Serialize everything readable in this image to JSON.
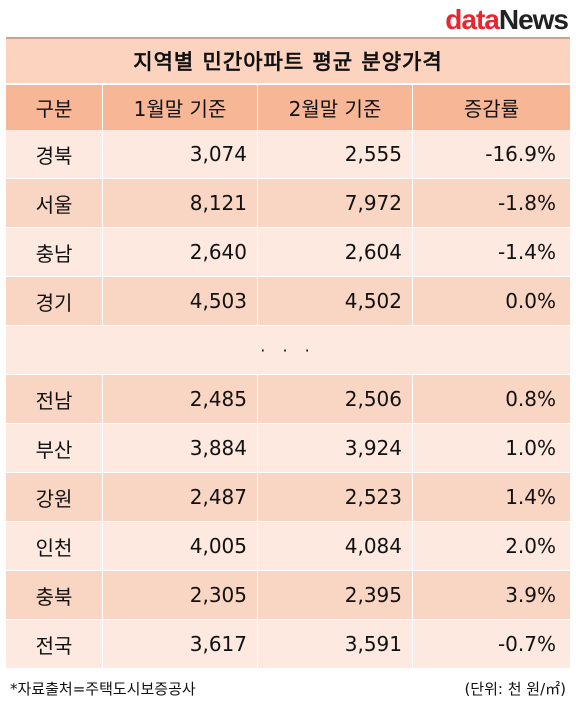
{
  "logo": {
    "part1": "data",
    "part2": "News"
  },
  "title": "지역별 민간아파트 평균 분양가격",
  "headers": [
    "구분",
    "1월말 기준",
    "2월말 기준",
    "증감률"
  ],
  "rows_top": [
    [
      "경북",
      "3,074",
      "2,555",
      "-16.9%"
    ],
    [
      "서울",
      "8,121",
      "7,972",
      "-1.8%"
    ],
    [
      "충남",
      "2,640",
      "2,604",
      "-1.4%"
    ],
    [
      "경기",
      "4,503",
      "4,502",
      "0.0%"
    ]
  ],
  "ellipsis": "· · ·",
  "rows_bottom": [
    [
      "전남",
      "2,485",
      "2,506",
      "0.8%"
    ],
    [
      "부산",
      "3,884",
      "3,924",
      "1.0%"
    ],
    [
      "강원",
      "2,487",
      "2,523",
      "1.4%"
    ],
    [
      "인천",
      "4,005",
      "4,084",
      "2.0%"
    ],
    [
      "충북",
      "2,305",
      "2,395",
      "3.9%"
    ],
    [
      "전국",
      "3,617",
      "3,591",
      "-0.7%"
    ]
  ],
  "footer": {
    "source": "*자료출처=주택도시보증공사",
    "unit": "(단위: 천 원/㎡)"
  }
}
